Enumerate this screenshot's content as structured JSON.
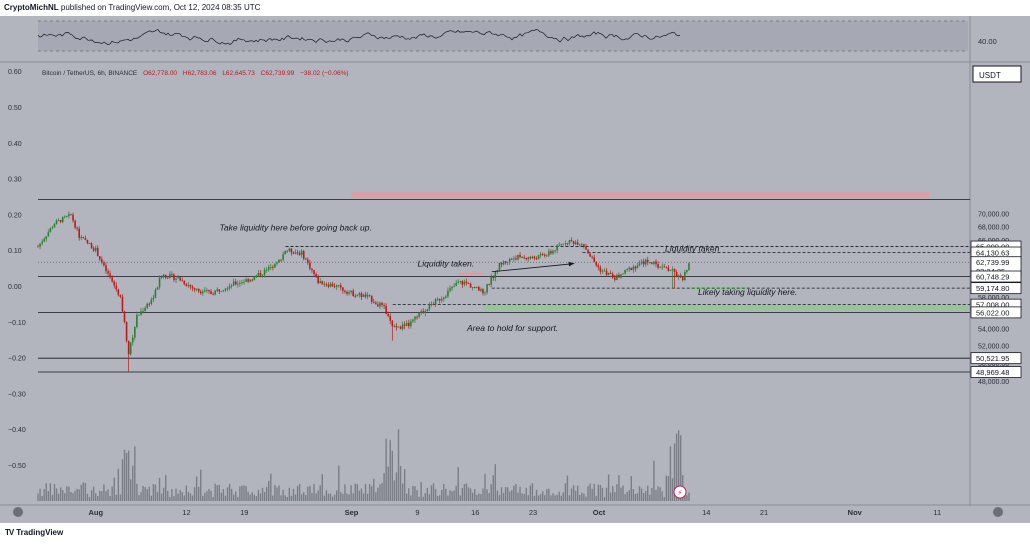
{
  "publish_info": {
    "author": "CryptoMichNL",
    "rest": " published on TradingView.com, Oct 12, 2024 08:35 UTC"
  },
  "symbol_line": {
    "name": "Bitcoin / TetherUS, 6h, BINANCE",
    "open": "O62,778.00",
    "high": "H62,783.06",
    "low": "L62,645.73",
    "close": "C62,739.99",
    "change": "−38.02 (−0.06%)"
  },
  "currency_badge": "USDT",
  "brand": {
    "mark": "TV",
    "name": "TradingView"
  },
  "colors": {
    "background": "#b2b5be",
    "up_candle": "#2e7d32",
    "down_candle": "#b71c1c",
    "volume": "#7a7d86",
    "support_zone": "#8fc98f",
    "resistance_zone": "#e39a9f",
    "rsi_line": "#131722",
    "price_badge": "#ffffff"
  },
  "chart_data": {
    "type": "candlestick",
    "symbol": "Bitcoin / TetherUS",
    "timeframe": "6h",
    "exchange": "BINANCE",
    "x_range": [
      "2024-07-25",
      "2024-11-16"
    ],
    "x_ticks": [
      {
        "label": "Aug",
        "date": "2024-08-01"
      },
      {
        "label": "12",
        "date": "2024-08-12"
      },
      {
        "label": "19",
        "date": "2024-08-19"
      },
      {
        "label": "Sep",
        "date": "2024-09-01"
      },
      {
        "label": "9",
        "date": "2024-09-09"
      },
      {
        "label": "16",
        "date": "2024-09-16"
      },
      {
        "label": "23",
        "date": "2024-09-23"
      },
      {
        "label": "Oct",
        "date": "2024-10-01"
      },
      {
        "label": "14",
        "date": "2024-10-14"
      },
      {
        "label": "21",
        "date": "2024-10-21"
      },
      {
        "label": "Nov",
        "date": "2024-11-01"
      },
      {
        "label": "11",
        "date": "2024-11-11"
      }
    ],
    "price_axis": {
      "scale": "log",
      "range": [
        47000,
        73500
      ],
      "ticks": [
        48000,
        50000,
        52000,
        54000,
        56000,
        58000,
        60000,
        62000,
        64000,
        66000,
        68000,
        70000
      ],
      "tick_labels": [
        "48,000.00",
        "50,000.00",
        "52,000.00",
        "54,000.00",
        "56,000.00",
        "58,000.00",
        "60,000.00",
        "62,000.00",
        "64,000.00",
        "66,000.00",
        "68,000.00",
        "70,000.00"
      ]
    },
    "left_axis": {
      "ticks": [
        0.6,
        0.5,
        0.4,
        0.3,
        0.2,
        0.1,
        0.0,
        -0.1,
        -0.2,
        -0.3,
        -0.4,
        -0.5
      ],
      "labels": [
        "0.60",
        "0.50",
        "0.40",
        "0.30",
        "0.20",
        "0.10",
        "0.00",
        "−0.10",
        "−0.20",
        "−0.30",
        "−0.40",
        "−0.50"
      ]
    },
    "rsi_panel": {
      "level_label": "40.00",
      "band": [
        40,
        60
      ],
      "range": [
        30,
        70
      ]
    },
    "price_path": [
      [
        "2024-07-25",
        65000
      ],
      [
        "2024-07-27",
        68500
      ],
      [
        "2024-07-29",
        69800
      ],
      [
        "2024-07-30",
        66500
      ],
      [
        "2024-08-01",
        64500
      ],
      [
        "2024-08-02",
        62000
      ],
      [
        "2024-08-04",
        58000
      ],
      [
        "2024-08-05",
        51000
      ],
      [
        "2024-08-06",
        55500
      ],
      [
        "2024-08-08",
        58000
      ],
      [
        "2024-08-09",
        61000
      ],
      [
        "2024-08-11",
        60500
      ],
      [
        "2024-08-13",
        59000
      ],
      [
        "2024-08-15",
        58500
      ],
      [
        "2024-08-17",
        59500
      ],
      [
        "2024-08-20",
        60500
      ],
      [
        "2024-08-23",
        62500
      ],
      [
        "2024-08-24",
        64500
      ],
      [
        "2024-08-26",
        64000
      ],
      [
        "2024-08-28",
        60000
      ],
      [
        "2024-08-30",
        59500
      ],
      [
        "2024-09-01",
        58500
      ],
      [
        "2024-09-03",
        58000
      ],
      [
        "2024-09-05",
        56500
      ],
      [
        "2024-09-06",
        54000
      ],
      [
        "2024-09-08",
        54500
      ],
      [
        "2024-09-10",
        56500
      ],
      [
        "2024-09-12",
        58000
      ],
      [
        "2024-09-14",
        60000
      ],
      [
        "2024-09-15",
        59800
      ],
      [
        "2024-09-17",
        58500
      ],
      [
        "2024-09-18",
        60500
      ],
      [
        "2024-09-19",
        62500
      ],
      [
        "2024-09-21",
        63500
      ],
      [
        "2024-09-23",
        63300
      ],
      [
        "2024-09-25",
        64000
      ],
      [
        "2024-09-27",
        65800
      ],
      [
        "2024-09-29",
        65500
      ],
      [
        "2024-09-30",
        63500
      ],
      [
        "2024-10-01",
        61800
      ],
      [
        "2024-10-03",
        60500
      ],
      [
        "2024-10-05",
        62000
      ],
      [
        "2024-10-07",
        63000
      ],
      [
        "2024-10-08",
        62300
      ],
      [
        "2024-10-10",
        61500
      ],
      [
        "2024-10-11",
        60200
      ],
      [
        "2024-10-12",
        62740
      ]
    ],
    "spikes": [
      [
        "2024-08-05",
        49000
      ],
      [
        "2024-09-06",
        52550
      ],
      [
        "2024-10-10",
        59100
      ]
    ],
    "last_candle_date": "2024-10-12",
    "horizontal_levels": [
      {
        "price": 72300,
        "style": "solid"
      },
      {
        "price": 65000,
        "style": "dashed",
        "from": "2024-08-24"
      },
      {
        "price": 64130.63,
        "style": "dashed",
        "from": "2024-09-29"
      },
      {
        "price": 62739.99,
        "style": "dotted",
        "from": "2024-07-25"
      },
      {
        "price": 60748.29,
        "style": "solid",
        "from": "2024-07-25"
      },
      {
        "price": 59174.8,
        "style": "dashed",
        "from": "2024-09-18"
      },
      {
        "price": 57008.0,
        "style": "dashed",
        "from": "2024-09-06"
      },
      {
        "price": 56022.0,
        "style": "solid",
        "from": "2024-07-25"
      },
      {
        "price": 50521.95,
        "style": "solid",
        "from": "2024-07-25"
      },
      {
        "price": 48969.48,
        "style": "solid",
        "from": "2024-07-25"
      }
    ],
    "zones": [
      {
        "kind": "resistance",
        "from": "2024-09-01",
        "to": "2024-11-10",
        "top": 73500,
        "bottom": 72500
      },
      {
        "kind": "support",
        "from": "2024-09-17",
        "to": "2024-11-16",
        "top": 57008,
        "bottom": 56250
      },
      {
        "kind": "target",
        "from": "2024-10-12",
        "to": "2024-10-19",
        "top": 59350,
        "bottom": 58950
      },
      {
        "kind": "liquidity",
        "from": "2024-09-14",
        "to": "2024-09-17",
        "top": 61300,
        "bottom": 60900
      }
    ],
    "arrow": {
      "from": [
        "2024-09-18",
        61400
      ],
      "to": [
        "2024-09-28",
        62550
      ]
    },
    "price_labels": [
      {
        "price": 65000,
        "text": "65,000.00"
      },
      {
        "price": 64130.63,
        "text": "64,130.63"
      },
      {
        "price": 62739.99,
        "text": "62,739.99",
        "sub": "03:24:25"
      },
      {
        "price": 60748.29,
        "text": "60,748.29"
      },
      {
        "price": 59174.8,
        "text": "59,174.80"
      },
      {
        "price": 57008.0,
        "text": "57,008.00"
      },
      {
        "price": 56022.0,
        "text": "56,022.00"
      },
      {
        "price": 50521.95,
        "text": "50,521.95"
      },
      {
        "price": 48969.48,
        "text": "48,969.48"
      }
    ],
    "annotations": [
      {
        "text": "Take liquidity here before going back up.",
        "date": "2024-08-16",
        "price": 67400
      },
      {
        "text": "Liquidity taken.",
        "date": "2024-09-09",
        "price": 62150
      },
      {
        "text": "Liquidity taken",
        "date": "2024-10-09",
        "price": 64300
      },
      {
        "text": "Likely taking liquidity here.",
        "date": "2024-10-13",
        "price": 58250
      },
      {
        "text": "Area to hold for support.",
        "date": "2024-09-15",
        "price": 53700
      }
    ]
  }
}
